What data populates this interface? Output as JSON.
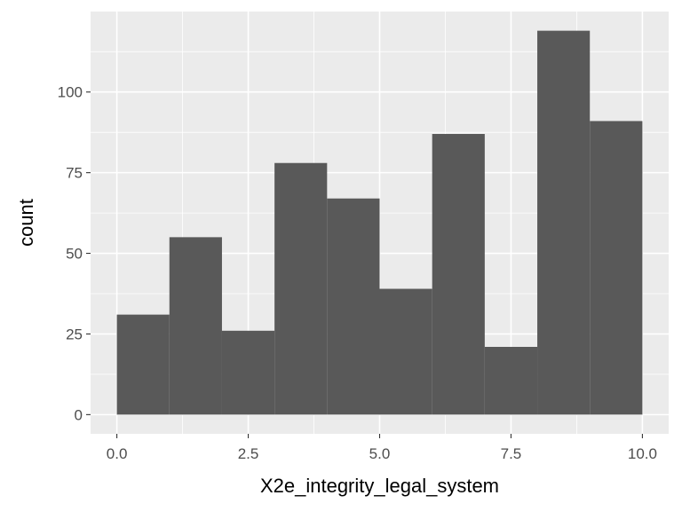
{
  "chart_data": {
    "type": "bar",
    "subtype": "histogram",
    "xlabel": "X2e_integrity_legal_system",
    "ylabel": "count",
    "bins": [
      {
        "x0": 0,
        "x1": 1,
        "count": 31
      },
      {
        "x0": 1,
        "x1": 2,
        "count": 55
      },
      {
        "x0": 2,
        "x1": 3,
        "count": 26
      },
      {
        "x0": 3,
        "x1": 4,
        "count": 78
      },
      {
        "x0": 4,
        "x1": 5,
        "count": 67
      },
      {
        "x0": 5,
        "x1": 6,
        "count": 39
      },
      {
        "x0": 6,
        "x1": 7,
        "count": 87
      },
      {
        "x0": 7,
        "x1": 8,
        "count": 21
      },
      {
        "x0": 8,
        "x1": 9,
        "count": 119
      },
      {
        "x0": 9,
        "x1": 10,
        "count": 91
      }
    ],
    "xlim": [
      -0.5,
      10.5
    ],
    "ylim": [
      -5.95,
      124.95
    ],
    "xticks": [
      {
        "value": 0,
        "label": "0.0"
      },
      {
        "value": 2.5,
        "label": "2.5"
      },
      {
        "value": 5,
        "label": "5.0"
      },
      {
        "value": 7.5,
        "label": "7.5"
      },
      {
        "value": 10,
        "label": "10.0"
      }
    ],
    "yticks": [
      {
        "value": 0,
        "label": "0"
      },
      {
        "value": 25,
        "label": "25"
      },
      {
        "value": 50,
        "label": "50"
      },
      {
        "value": 75,
        "label": "75"
      },
      {
        "value": 100,
        "label": "100"
      }
    ],
    "grid": true,
    "colors": {
      "panel_background": "#ebebeb",
      "grid_major": "#ffffff",
      "bar_fill": "#595959",
      "tick_text": "#4d4d4d",
      "axis_title_text": "#000000"
    }
  }
}
